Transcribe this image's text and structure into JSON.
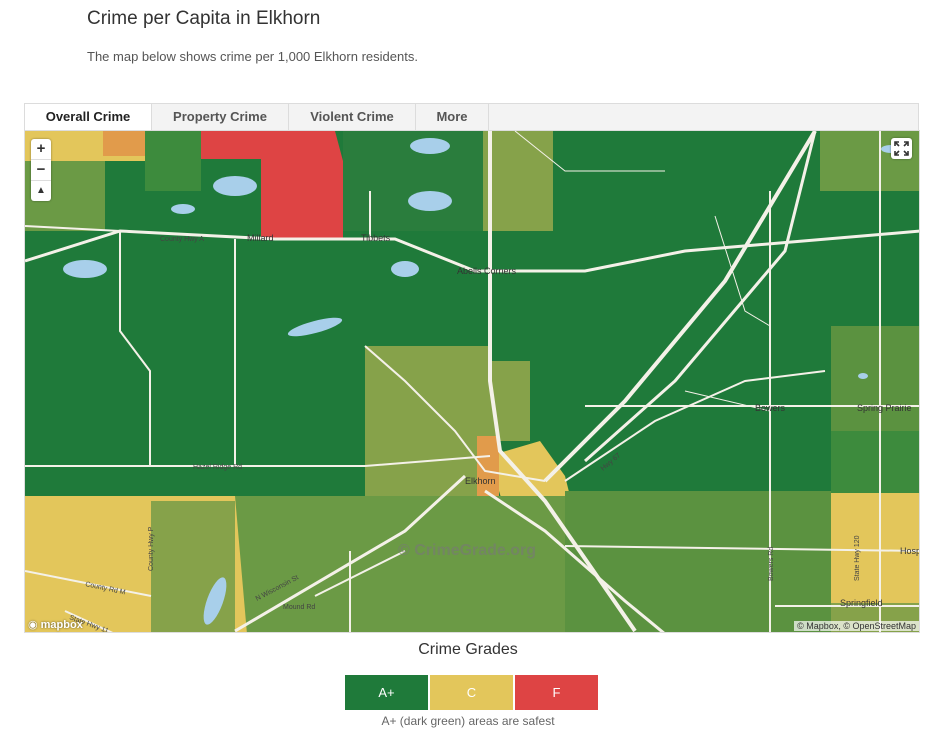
{
  "header": {
    "title": "Crime per Capita in Elkhorn",
    "subtitle": "The map below shows crime per 1,000 Elkhorn residents."
  },
  "tabs": [
    {
      "label": "Overall Crime",
      "active": true
    },
    {
      "label": "Property Crime",
      "active": false
    },
    {
      "label": "Violent Crime",
      "active": false
    },
    {
      "label": "More",
      "active": false
    }
  ],
  "map": {
    "zoom_in": "+",
    "zoom_out": "−",
    "compass": "▲",
    "fullscreen_icon": "fullscreen-icon",
    "logo": "mapbox",
    "attribution": "© Mapbox, © OpenStreetMap",
    "watermark": "© CrimeGrade.org",
    "places": [
      "Millard",
      "Tibbets",
      "Abells Corners",
      "Elkhorn",
      "Bowers",
      "Spring Prairie",
      "Springfield",
      "Hospi"
    ],
    "roads": [
      "County Hwy A",
      "Hazel Ridge Rd",
      "County Hwy P",
      "County Rd M",
      "State Hwy 11",
      "Mound Rd",
      "N Wisconsin St",
      "Hwy 67",
      "County Rd O",
      "State Hwy 120",
      "Bowers Rd",
      "Town Hall Rd"
    ],
    "colors": {
      "a_plus": "#1f7a3a",
      "a": "#3d8b3d",
      "b": "#6b9a45",
      "b_minus": "#86a24a",
      "c": "#e3c65b",
      "d": "#e19b4b",
      "f": "#de4444",
      "water": "#a8cfea",
      "road": "#f4f1e8"
    }
  },
  "legend": {
    "title": "Crime Grades",
    "items": [
      {
        "label": "A+",
        "color": "#1f7a3a"
      },
      {
        "label": "C",
        "color": "#e3c65b"
      },
      {
        "label": "F",
        "color": "#de4444"
      }
    ],
    "note": "A+ (dark green) areas are safest"
  }
}
